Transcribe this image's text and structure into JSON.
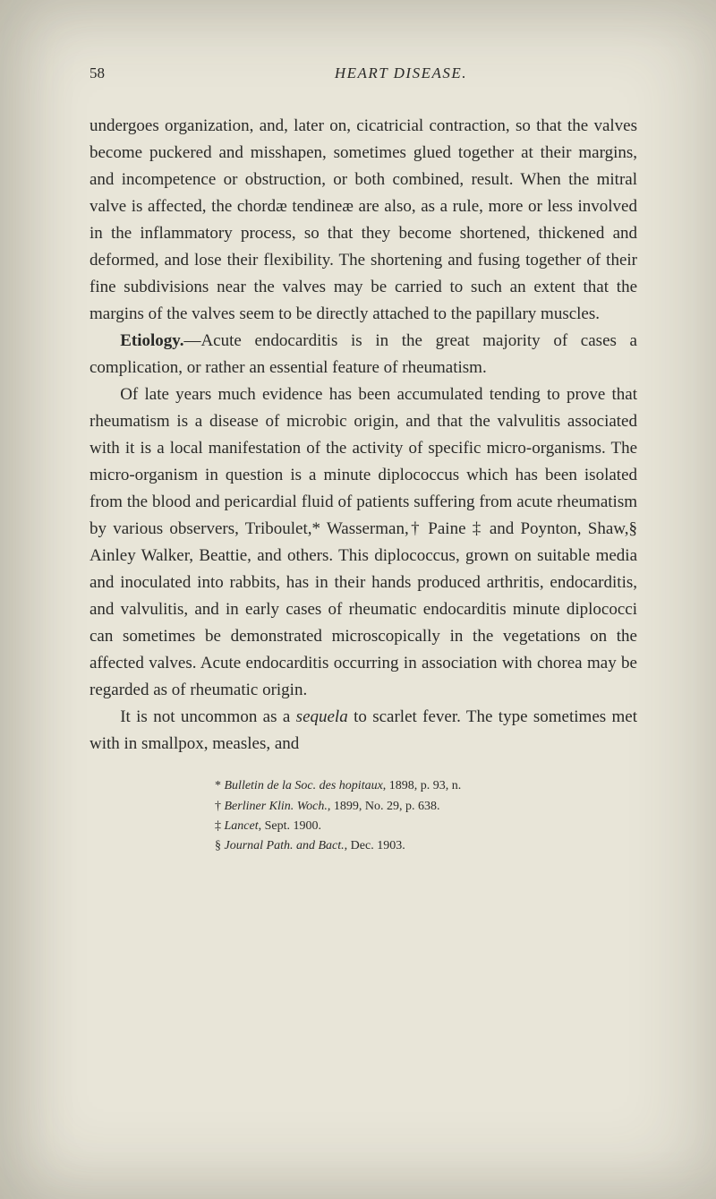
{
  "header": {
    "page_number": "58",
    "running_head": "HEART DISEASE."
  },
  "paragraphs": {
    "p1": "undergoes organization, and, later on, cicatricial con­traction, so that the valves become puckered and mis­shapen, sometimes glued together at their margins, and incompetence or obstruction, or both combined, result. When the mitral valve is affected, the chordæ tendineæ are also, as a rule, more or less involved in the inflam­matory process, so that they become shortened, thickened and deformed, and lose their flexibility. The shortening and fusing together of their fine subdivisions near the valves may be carried to such an extent that the margins of the valves seem to be directly attached to the papillary muscles.",
    "p2_label": "Etiology.",
    "p2_rest": "—Acute endocarditis is in the great majority of cases a complication, or rather an essential feature of rheumatism.",
    "p3": "Of late years much evidence has been accumulated tending to prove that rheumatism is a disease of microbic origin, and that the valvulitis associated with it is a local manifestation of the activity of specific micro-organisms. The micro-organism in question is a minute diplococcus which has been isolated from the blood and pericardial fluid of patients suffering from acute rheumatism by various observers, Triboulet,* Wasserman,† Paine ‡ and Poynton, Shaw,§ Ainley Walker, Beattie, and others. This diplo­coccus, grown on suitable media and inoculated into rabbits, has in their hands produced arthritis, endocarditis, and valvulitis, and in early cases of rheumatic endocarditis minute diplococci can sometimes be demonstrated micro­scopically in the vegetations on the affected valves. Acute endocarditis occurring in association with chorea may be regarded as of rheumatic origin.",
    "p4_a": "It is not uncommon as a ",
    "p4_seq": "sequela",
    "p4_b": " to scarlet fever. The type sometimes met with in smallpox, measles, and"
  },
  "footnotes": {
    "f1_mark": "*",
    "f1_title": "Bulletin de la Soc. des hopitaux",
    "f1_rest": ", 1898, p. 93, n.",
    "f2_mark": "†",
    "f2_title": "Berliner Klin. Woch.",
    "f2_rest": ", 1899, No. 29, p. 638.",
    "f3_mark": "‡",
    "f3_title": "Lancet",
    "f3_rest": ", Sept. 1900.",
    "f4_mark": "§",
    "f4_title": "Journal Path. and Bact.",
    "f4_rest": ", Dec. 1903."
  }
}
